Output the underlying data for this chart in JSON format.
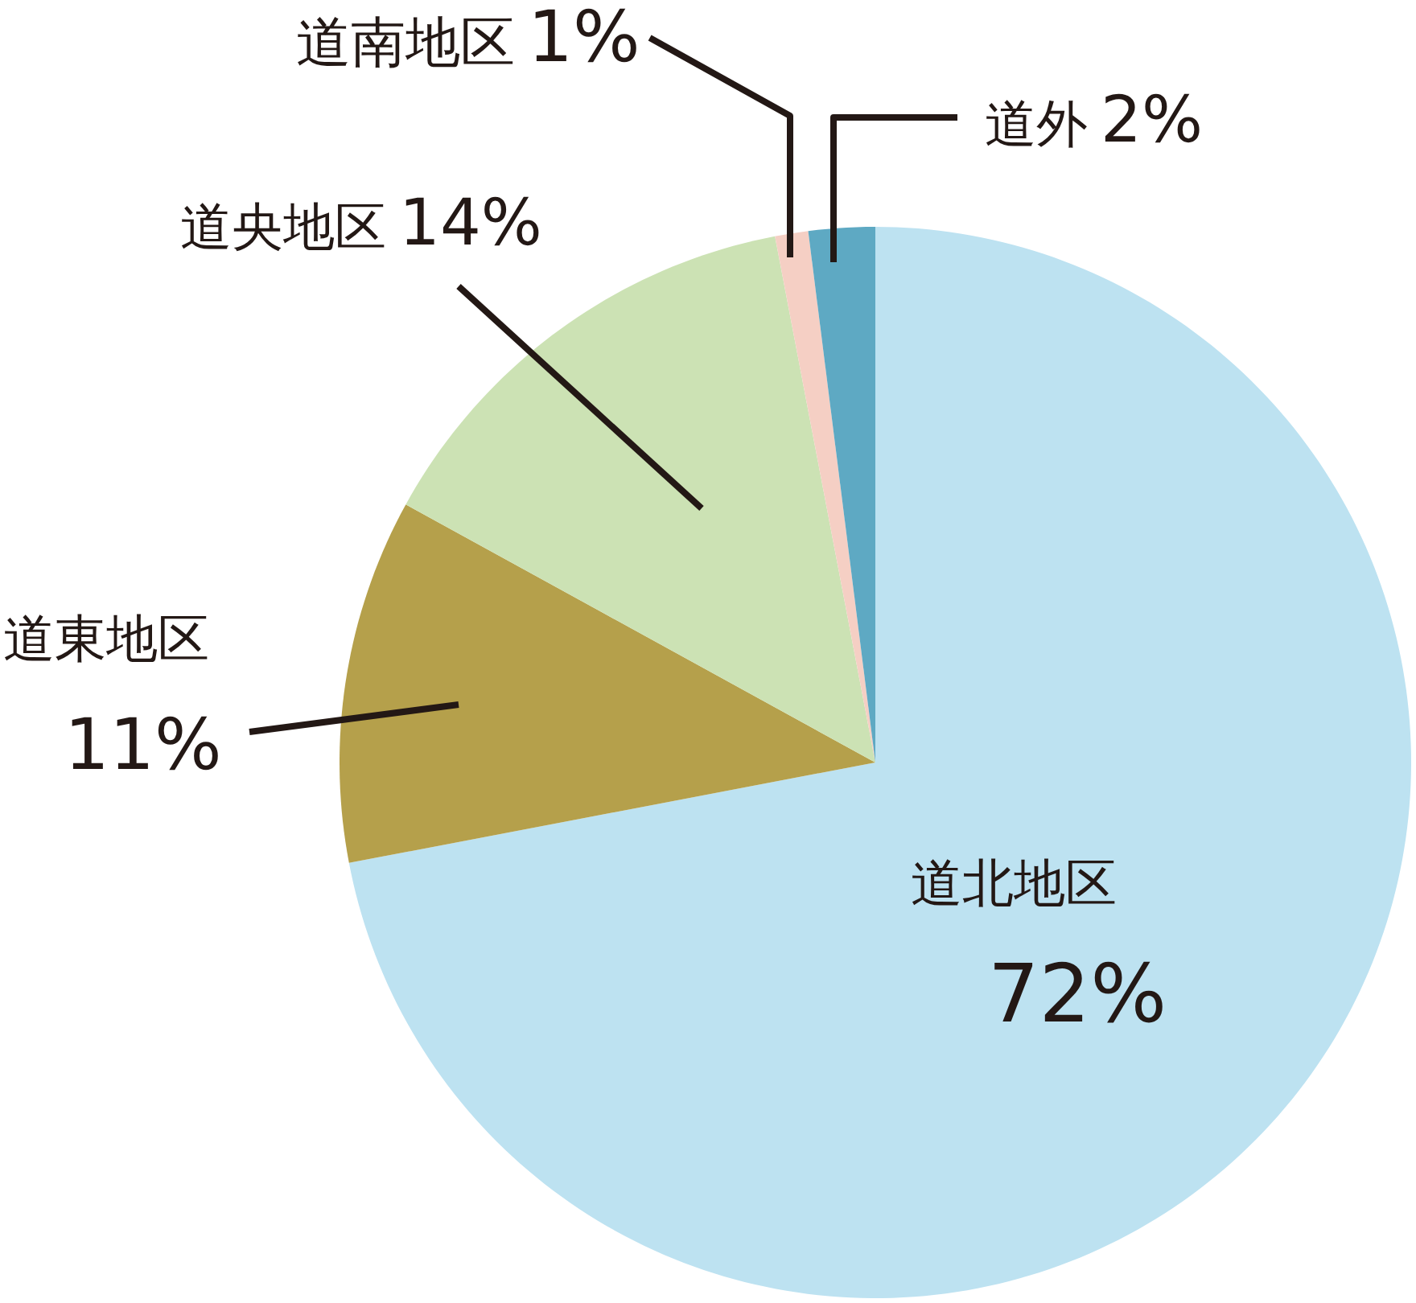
{
  "chart_data": {
    "type": "pie",
    "categories": [
      "道北地区",
      "道東地区",
      "道央地区",
      "道南地区",
      "道外"
    ],
    "values": [
      72,
      11,
      14,
      1,
      2
    ],
    "colors": [
      "#bde2f1",
      "#b5a04b",
      "#cce2b4",
      "#f5cfc4",
      "#5ea9c3"
    ],
    "value_labels": [
      "72%",
      "11%",
      "14%",
      "1%",
      "2%"
    ]
  }
}
